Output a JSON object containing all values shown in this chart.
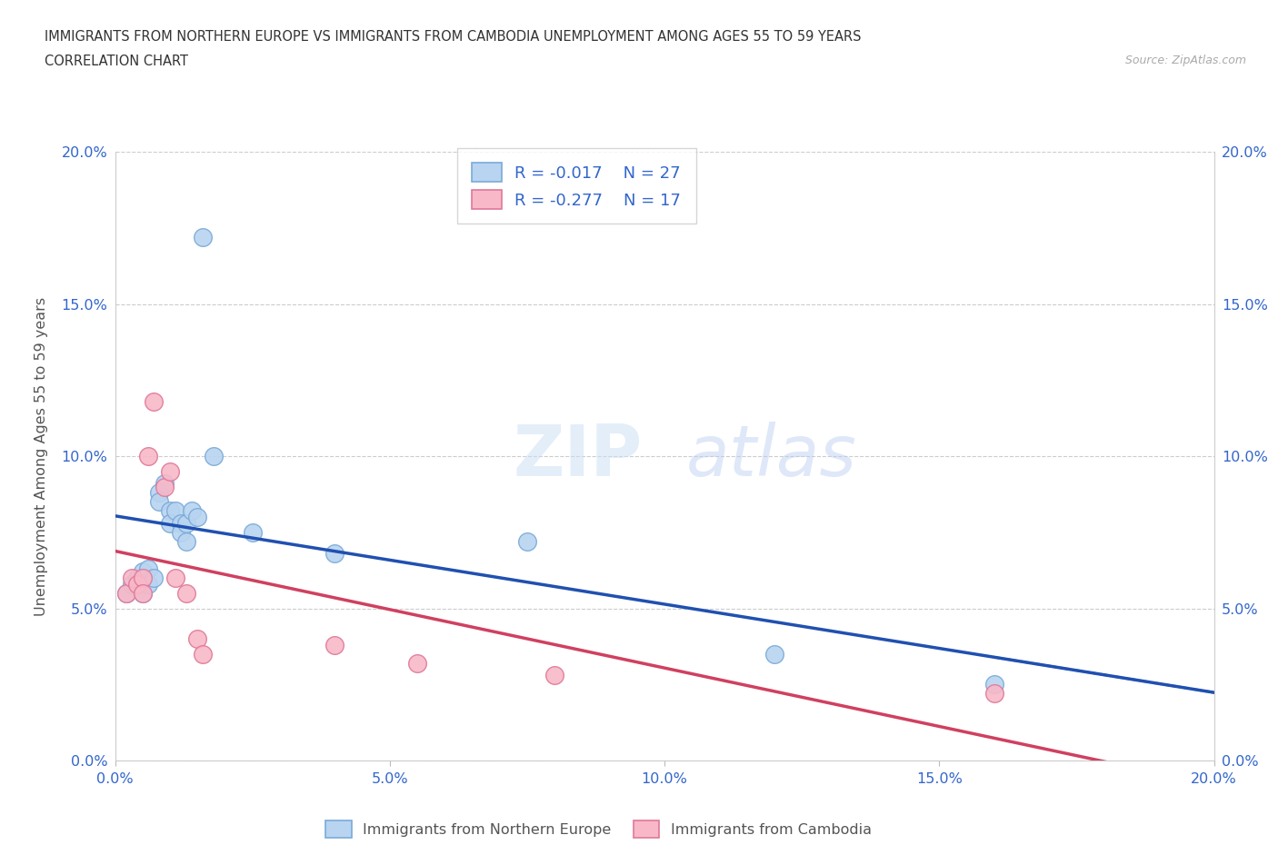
{
  "title_line1": "IMMIGRANTS FROM NORTHERN EUROPE VS IMMIGRANTS FROM CAMBODIA UNEMPLOYMENT AMONG AGES 55 TO 59 YEARS",
  "title_line2": "CORRELATION CHART",
  "source": "Source: ZipAtlas.com",
  "ylabel": "Unemployment Among Ages 55 to 59 years",
  "xlim": [
    0.0,
    0.2
  ],
  "ylim": [
    0.0,
    0.2
  ],
  "blue_R": "-0.017",
  "blue_N": "27",
  "pink_R": "-0.277",
  "pink_N": "17",
  "blue_color": "#b8d4f0",
  "blue_edge": "#7aaad8",
  "pink_color": "#f8b8c8",
  "pink_edge": "#e07898",
  "blue_line_color": "#2050b0",
  "pink_line_color": "#d04060",
  "grid_color": "#cccccc",
  "watermark_zip": "ZIP",
  "watermark_atlas": "atlas",
  "tick_color": "#3366cc",
  "ytick_vals": [
    0.0,
    0.05,
    0.1,
    0.15,
    0.2
  ],
  "ytick_labels": [
    "0.0%",
    "5.0%",
    "10.0%",
    "15.0%",
    "20.0%"
  ],
  "xtick_vals": [
    0.0,
    0.05,
    0.1,
    0.15,
    0.2
  ],
  "xtick_labels": [
    "0.0%",
    "5.0%",
    "10.0%",
    "15.0%",
    "20.0%"
  ],
  "legend_blue_label": "Immigrants from Northern Europe",
  "legend_pink_label": "Immigrants from Cambodia",
  "blue_scatter_x": [
    0.002,
    0.003,
    0.004,
    0.005,
    0.005,
    0.006,
    0.006,
    0.007,
    0.008,
    0.008,
    0.009,
    0.01,
    0.01,
    0.011,
    0.012,
    0.012,
    0.013,
    0.013,
    0.014,
    0.015,
    0.016,
    0.018,
    0.025,
    0.04,
    0.075,
    0.12,
    0.16
  ],
  "blue_scatter_y": [
    0.055,
    0.058,
    0.06,
    0.055,
    0.062,
    0.058,
    0.063,
    0.06,
    0.088,
    0.085,
    0.091,
    0.082,
    0.078,
    0.082,
    0.078,
    0.075,
    0.078,
    0.072,
    0.082,
    0.08,
    0.172,
    0.1,
    0.075,
    0.068,
    0.072,
    0.035,
    0.025
  ],
  "pink_scatter_x": [
    0.002,
    0.003,
    0.004,
    0.005,
    0.005,
    0.006,
    0.007,
    0.009,
    0.01,
    0.011,
    0.013,
    0.015,
    0.016,
    0.04,
    0.055,
    0.08,
    0.16
  ],
  "pink_scatter_y": [
    0.055,
    0.06,
    0.058,
    0.06,
    0.055,
    0.1,
    0.118,
    0.09,
    0.095,
    0.06,
    0.055,
    0.04,
    0.035,
    0.038,
    0.032,
    0.028,
    0.022
  ],
  "scatter_size": 200
}
